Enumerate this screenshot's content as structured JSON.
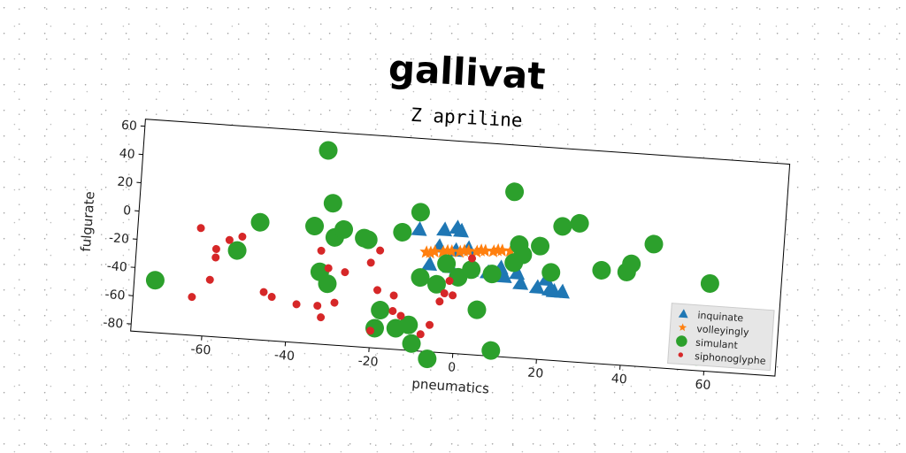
{
  "chart_data": {
    "type": "scatter",
    "title": "gallivat",
    "subtitle": "Z apriline",
    "xlabel": "pneumatics",
    "ylabel": "fulgurate",
    "xlim": [
      -77,
      77
    ],
    "ylim": [
      -85,
      65
    ],
    "xticks": [
      "-60",
      "-40",
      "-20",
      "0",
      "20",
      "40",
      "60"
    ],
    "yticks": [
      "60",
      "40",
      "20",
      "0",
      "-20",
      "-40",
      "-60",
      "-80"
    ],
    "legend_position": "lower-right",
    "grid": false,
    "series": [
      {
        "name": "inquinate",
        "marker": "triangle",
        "color": "#1f77b4",
        "points": [
          [
            -10,
            1
          ],
          [
            -4,
            2
          ],
          [
            -1,
            4
          ],
          [
            0,
            2
          ],
          [
            -7,
            -23
          ],
          [
            -2,
            -24
          ],
          [
            3,
            -25
          ],
          [
            7,
            -26
          ],
          [
            11,
            -28
          ],
          [
            10,
            -22
          ],
          [
            14,
            -25
          ],
          [
            15,
            -32
          ],
          [
            19,
            -34
          ],
          [
            21,
            -28
          ],
          [
            22,
            -35
          ],
          [
            23,
            -36
          ],
          [
            25,
            -36
          ],
          [
            -5,
            -10
          ],
          [
            -1,
            -12
          ],
          [
            2,
            -10
          ]
        ]
      },
      {
        "name": "volleyingly",
        "marker": "star",
        "color": "#ff7f0e",
        "points": [
          [
            -8,
            -15
          ],
          [
            -6,
            -14
          ],
          [
            -4,
            -14
          ],
          [
            -2,
            -13
          ],
          [
            0,
            -13
          ],
          [
            2,
            -12
          ],
          [
            4,
            -12
          ],
          [
            6,
            -11
          ],
          [
            8,
            -11
          ],
          [
            10,
            -10
          ],
          [
            12,
            -10
          ],
          [
            -7,
            -15
          ],
          [
            -3,
            -13
          ],
          [
            1,
            -12
          ],
          [
            5,
            -11
          ],
          [
            9,
            -10
          ]
        ]
      },
      {
        "name": "simulant",
        "marker": "circle",
        "color": "#2ca02c",
        "points": [
          [
            -33,
            52
          ],
          [
            -31,
            15
          ],
          [
            -48,
            -2
          ],
          [
            -30,
            -9
          ],
          [
            -35,
            -2
          ],
          [
            -28,
            -3
          ],
          [
            -23,
            -8
          ],
          [
            -22,
            -9
          ],
          [
            -14,
            -2
          ],
          [
            -10,
            13
          ],
          [
            -9,
            -33
          ],
          [
            -5,
            -37
          ],
          [
            -3,
            -22
          ],
          [
            0,
            -31
          ],
          [
            5,
            -53
          ],
          [
            -19,
            -71
          ],
          [
            -18,
            -58
          ],
          [
            -14,
            -70
          ],
          [
            -11,
            -67
          ],
          [
            -10,
            -80
          ],
          [
            -6,
            -90
          ],
          [
            3,
            -25
          ],
          [
            8,
            -27
          ],
          [
            12,
            32
          ],
          [
            13,
            -18
          ],
          [
            14,
            -5
          ],
          [
            15,
            -12
          ],
          [
            19,
            -5
          ],
          [
            22,
            -23
          ],
          [
            24,
            10
          ],
          [
            28,
            13
          ],
          [
            34,
            -19
          ],
          [
            40,
            -19
          ],
          [
            41,
            -13
          ],
          [
            46,
            2
          ],
          [
            -53,
            -23
          ],
          [
            -33,
            -34
          ],
          [
            -31,
            -42
          ],
          [
            -72,
            -48
          ],
          [
            9,
            -81
          ],
          [
            56,
            -58
          ],
          [
            58,
            -75
          ],
          [
            60,
            -23
          ],
          [
            71,
            -60
          ]
        ]
      },
      {
        "name": "siphonoglyphe",
        "marker": "dot",
        "color": "#d62728",
        "points": [
          [
            -62,
            -9
          ],
          [
            -58,
            -23
          ],
          [
            -58,
            -29
          ],
          [
            -55,
            -16
          ],
          [
            -52,
            -13
          ],
          [
            -59,
            -45
          ],
          [
            -63,
            -58
          ],
          [
            -46,
            -51
          ],
          [
            -44,
            -54
          ],
          [
            -38,
            -58
          ],
          [
            -33,
            -58
          ],
          [
            -32,
            -66
          ],
          [
            -33,
            -19
          ],
          [
            -31,
            -31
          ],
          [
            -29,
            -55
          ],
          [
            -27,
            -33
          ],
          [
            -21,
            -25
          ],
          [
            -19,
            -16
          ],
          [
            -19,
            -44
          ],
          [
            -15,
            -47
          ],
          [
            -15,
            -58
          ],
          [
            -13,
            -61
          ],
          [
            -6,
            -66
          ],
          [
            -8,
            -73
          ],
          [
            -20,
            -73
          ],
          [
            -4,
            -49
          ],
          [
            -3,
            -43
          ],
          [
            -2,
            -34
          ],
          [
            3,
            -17
          ],
          [
            -1,
            -44
          ]
        ]
      }
    ]
  }
}
